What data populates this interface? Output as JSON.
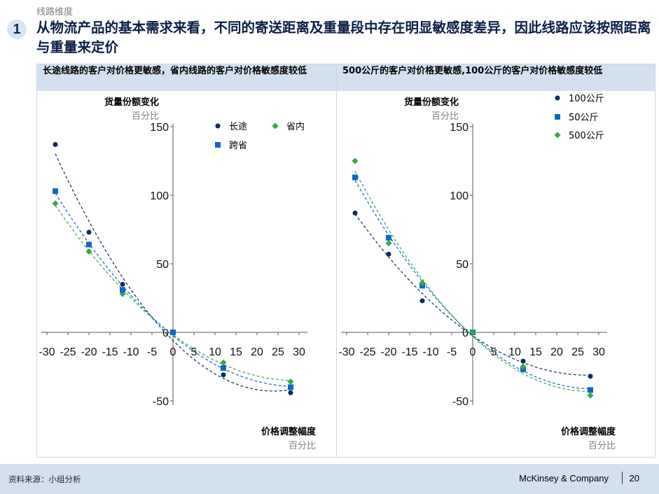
{
  "header": {
    "section_label": "线路维度",
    "number": "1",
    "headline": "从物流产品的基本需求来看，不同的寄送距离及重量段中存在明显敏感度差异，因此线路应该按照距离与重量来定价"
  },
  "colors": {
    "navy": "#0d2a5c",
    "blue": "#1266c2",
    "green": "#38a845",
    "panel_header": "#d3e0f0"
  },
  "footer": {
    "source": "资料来源：小组分析",
    "brand": "McKinsey & Company",
    "page": "20"
  },
  "chart_data": [
    {
      "type": "scatter",
      "title": "长途线路的客户对价格更敏感，省内线路的客户对价格敏感度较低",
      "ylabel": "货量份额变化",
      "yunit": "百分比",
      "xlabel": "价格调整幅度",
      "xunit": "百分比",
      "xlim": [
        -30,
        30
      ],
      "ylim": [
        -50,
        150
      ],
      "xticks": [
        "-30",
        "-25",
        "-20",
        "-15",
        "-10",
        "-5",
        "0",
        "5",
        "10",
        "15",
        "20",
        "25",
        "30"
      ],
      "yticks": [
        "150",
        "100",
        "50",
        "0",
        "-50"
      ],
      "trendlines": "dashed polynomial",
      "legend_position": "top-right",
      "series": [
        {
          "name": "长途",
          "marker": "circle",
          "color": "#0d2a5c",
          "x": [
            -28,
            -20,
            -12,
            0,
            12,
            28
          ],
          "y": [
            137,
            73,
            35,
            0,
            -31,
            -44
          ]
        },
        {
          "name": "省内",
          "marker": "diamond",
          "color": "#38a845",
          "x": [
            -28,
            -20,
            -12,
            0,
            12,
            28
          ],
          "y": [
            94,
            59,
            28,
            0,
            -22,
            -36
          ]
        },
        {
          "name": "跨省",
          "marker": "square",
          "color": "#1266c2",
          "x": [
            -28,
            -20,
            -12,
            0,
            12,
            28
          ],
          "y": [
            103,
            64,
            31,
            0,
            -26,
            -40
          ]
        }
      ]
    },
    {
      "type": "scatter",
      "title": "500公斤的客户对价格更敏感,100公斤的客户对价格敏感度较低",
      "ylabel": "货量份额变化",
      "yunit": "百分比",
      "xlabel": "价格调整幅度",
      "xunit": "百分比",
      "xlim": [
        -30,
        30
      ],
      "ylim": [
        -50,
        150
      ],
      "xticks": [
        "-30",
        "-25",
        "-20",
        "-15",
        "-10",
        "-5",
        "0",
        "5",
        "10",
        "15",
        "20",
        "25",
        "30"
      ],
      "yticks": [
        "150",
        "100",
        "50",
        "0",
        "-50"
      ],
      "trendlines": "dashed polynomial",
      "legend_position": "top-right",
      "series": [
        {
          "name": "100公斤",
          "marker": "circle",
          "color": "#0d2a5c",
          "x": [
            -28,
            -20,
            -12,
            0,
            12,
            28
          ],
          "y": [
            87,
            57,
            23,
            0,
            -21,
            -32
          ]
        },
        {
          "name": "50公斤",
          "marker": "square",
          "color": "#1266c2",
          "x": [
            -28,
            -20,
            -12,
            0,
            12,
            28
          ],
          "y": [
            113,
            69,
            34,
            0,
            -27,
            -42
          ]
        },
        {
          "name": "500公斤",
          "marker": "diamond",
          "color": "#38a845",
          "x": [
            -28,
            -20,
            -12,
            0,
            12,
            28
          ],
          "y": [
            125,
            65,
            36,
            0,
            -25,
            -46
          ]
        }
      ]
    }
  ]
}
